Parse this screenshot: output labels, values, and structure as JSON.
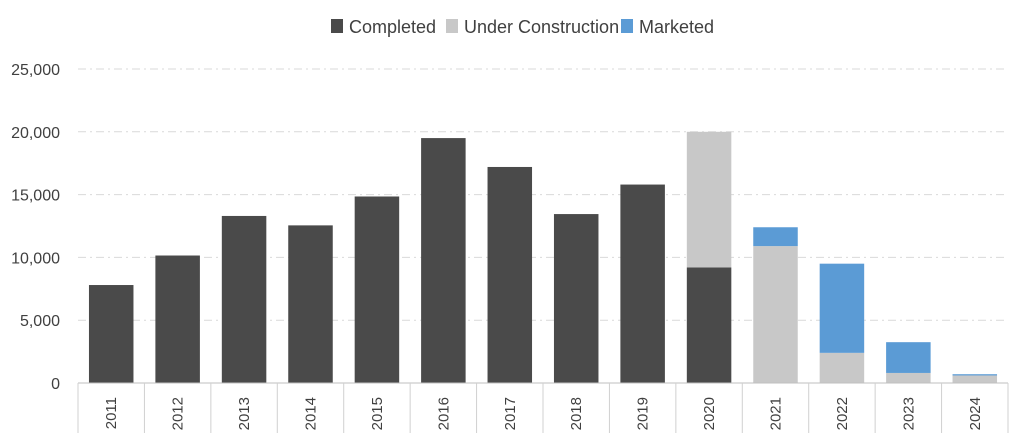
{
  "chart_data": {
    "type": "bar",
    "stacked": true,
    "categories": [
      "2011",
      "2012",
      "2013",
      "2014",
      "2015",
      "2016",
      "2017",
      "2018",
      "2019",
      "2020",
      "2021",
      "2022",
      "2023",
      "2024"
    ],
    "series": [
      {
        "name": "Completed",
        "color": "#4a4a4a",
        "values": [
          7800,
          10150,
          13300,
          12550,
          14850,
          19500,
          17200,
          13450,
          15800,
          9200,
          0,
          0,
          0,
          0
        ]
      },
      {
        "name": "Under Construction",
        "color": "#c8c8c8",
        "values": [
          0,
          0,
          0,
          0,
          0,
          0,
          0,
          0,
          0,
          10800,
          10900,
          2400,
          800,
          600
        ]
      },
      {
        "name": "Marketed",
        "color": "#5b9bd5",
        "values": [
          0,
          0,
          0,
          0,
          0,
          0,
          0,
          0,
          0,
          0,
          1500,
          7100,
          2450,
          100
        ]
      }
    ],
    "yticks": [
      "0",
      "5,000",
      "10,000",
      "15,000",
      "20,000",
      "25,000"
    ],
    "ylim": [
      0,
      25000
    ],
    "grid": true,
    "legend_position": "top-center",
    "xtick_rotation": "vertical"
  }
}
